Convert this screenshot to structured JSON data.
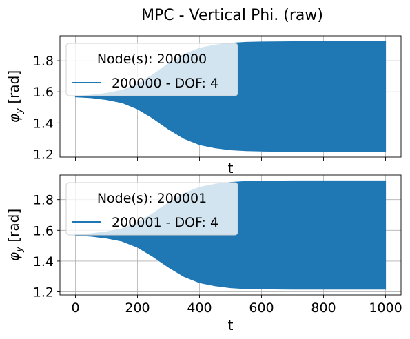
{
  "figure": {
    "title": "MPC - Vertical Phi. (raw)"
  },
  "colors": {
    "series": "#1f77b4",
    "grid": "#b0b0b0",
    "axes": "#000000"
  },
  "chart_data": [
    {
      "type": "area",
      "xlabel": "t",
      "ylabel_symbol": "φ",
      "ylabel_subscript": "y",
      "ylabel_unit": "[rad]",
      "xlim": [
        -50,
        1050
      ],
      "ylim": [
        1.18,
        1.96
      ],
      "xticks": [
        0,
        200,
        400,
        600,
        800,
        1000
      ],
      "xtick_labels_visible": false,
      "yticks": [
        1.2,
        1.4,
        1.6,
        1.8
      ],
      "ytick_labels": [
        "1.2",
        "1.4",
        "1.6",
        "1.8"
      ],
      "grid": true,
      "legend_title": "Node(s): 200000",
      "legend_placement": "upper-left",
      "series": [
        {
          "name": "200000 - DOF: 4",
          "envelope": {
            "x": [
              0,
              50,
              100,
              150,
              200,
              250,
              300,
              350,
              400,
              450,
              500,
              550,
              600,
              700,
              800,
              900,
              1000
            ],
            "upper": [
              1.572,
              1.578,
              1.59,
              1.61,
              1.65,
              1.71,
              1.78,
              1.84,
              1.88,
              1.9,
              1.912,
              1.918,
              1.92,
              1.922,
              1.922,
              1.922,
              1.922
            ],
            "lower": [
              1.568,
              1.562,
              1.55,
              1.53,
              1.49,
              1.43,
              1.36,
              1.3,
              1.26,
              1.24,
              1.227,
              1.221,
              1.219,
              1.217,
              1.217,
              1.217,
              1.217
            ]
          }
        }
      ]
    },
    {
      "type": "area",
      "xlabel": "t",
      "ylabel_symbol": "φ",
      "ylabel_subscript": "y",
      "ylabel_unit": "[rad]",
      "xlim": [
        -50,
        1050
      ],
      "ylim": [
        1.18,
        1.96
      ],
      "xticks": [
        0,
        200,
        400,
        600,
        800,
        1000
      ],
      "xtick_labels": [
        "0",
        "200",
        "400",
        "600",
        "800",
        "1000"
      ],
      "xtick_labels_visible": true,
      "yticks": [
        1.2,
        1.4,
        1.6,
        1.8
      ],
      "ytick_labels": [
        "1.2",
        "1.4",
        "1.6",
        "1.8"
      ],
      "grid": true,
      "legend_title": "Node(s): 200001",
      "legend_placement": "upper-left",
      "series": [
        {
          "name": "200001 - DOF: 4",
          "envelope": {
            "x": [
              0,
              50,
              100,
              150,
              200,
              250,
              300,
              350,
              400,
              450,
              500,
              550,
              600,
              700,
              800,
              900,
              1000
            ],
            "upper": [
              1.572,
              1.578,
              1.59,
              1.61,
              1.65,
              1.71,
              1.78,
              1.84,
              1.88,
              1.9,
              1.912,
              1.918,
              1.92,
              1.922,
              1.922,
              1.922,
              1.922
            ],
            "lower": [
              1.568,
              1.562,
              1.55,
              1.53,
              1.49,
              1.43,
              1.36,
              1.3,
              1.26,
              1.24,
              1.227,
              1.221,
              1.219,
              1.217,
              1.217,
              1.217,
              1.217
            ]
          }
        }
      ]
    }
  ]
}
